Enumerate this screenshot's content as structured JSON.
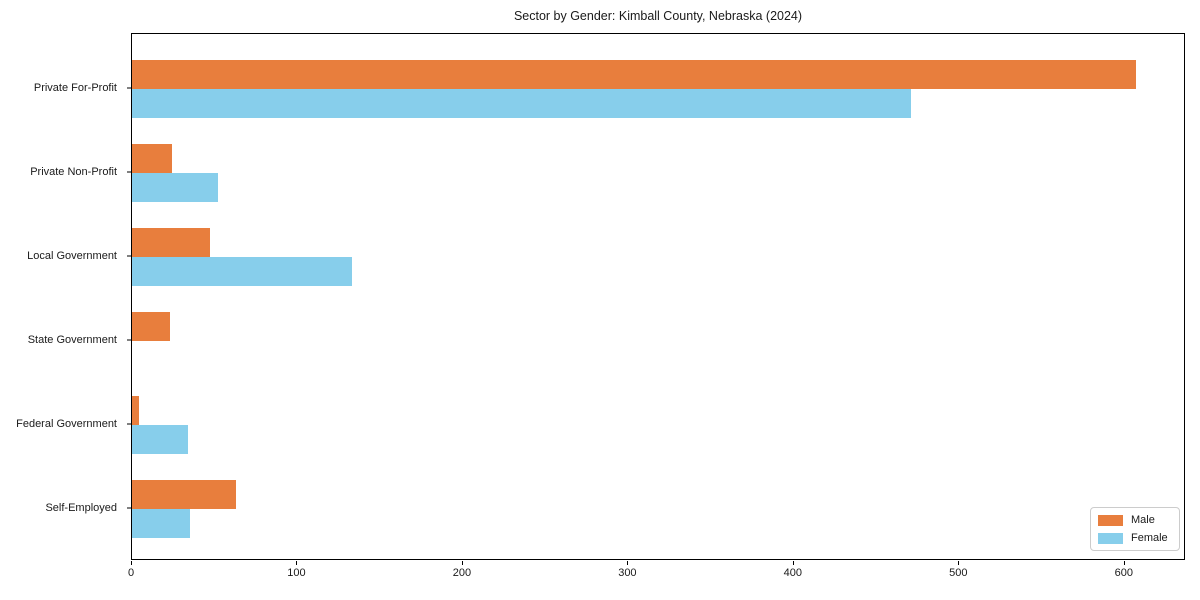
{
  "title": "Sector by Gender: Kimball County, Nebraska (2024)",
  "colors": {
    "male": "#e87e3d",
    "female": "#87ceeb",
    "axis": "#000000",
    "legend_border": "#cccccc"
  },
  "legend": {
    "position": "lower right",
    "items": [
      {
        "label": "Male",
        "color": "#e87e3d"
      },
      {
        "label": "Female",
        "color": "#87ceeb"
      }
    ]
  },
  "chart_data": {
    "type": "bar",
    "orientation": "horizontal",
    "title": "Sector by Gender: Kimball County, Nebraska (2024)",
    "categories": [
      "Private For-Profit",
      "Private Non-Profit",
      "Local Government",
      "State Government",
      "Federal Government",
      "Self-Employed"
    ],
    "series": [
      {
        "name": "Male",
        "color": "#e87e3d",
        "values": [
          607,
          24,
          47,
          23,
          4,
          63
        ]
      },
      {
        "name": "Female",
        "color": "#87ceeb",
        "values": [
          471,
          52,
          133,
          0,
          34,
          35
        ]
      }
    ],
    "xlabel": "",
    "ylabel": "",
    "x_ticks": [
      0,
      100,
      200,
      300,
      400,
      500,
      600
    ],
    "xlim": [
      0,
      637
    ],
    "grid": false,
    "legend_position": "lower right"
  }
}
